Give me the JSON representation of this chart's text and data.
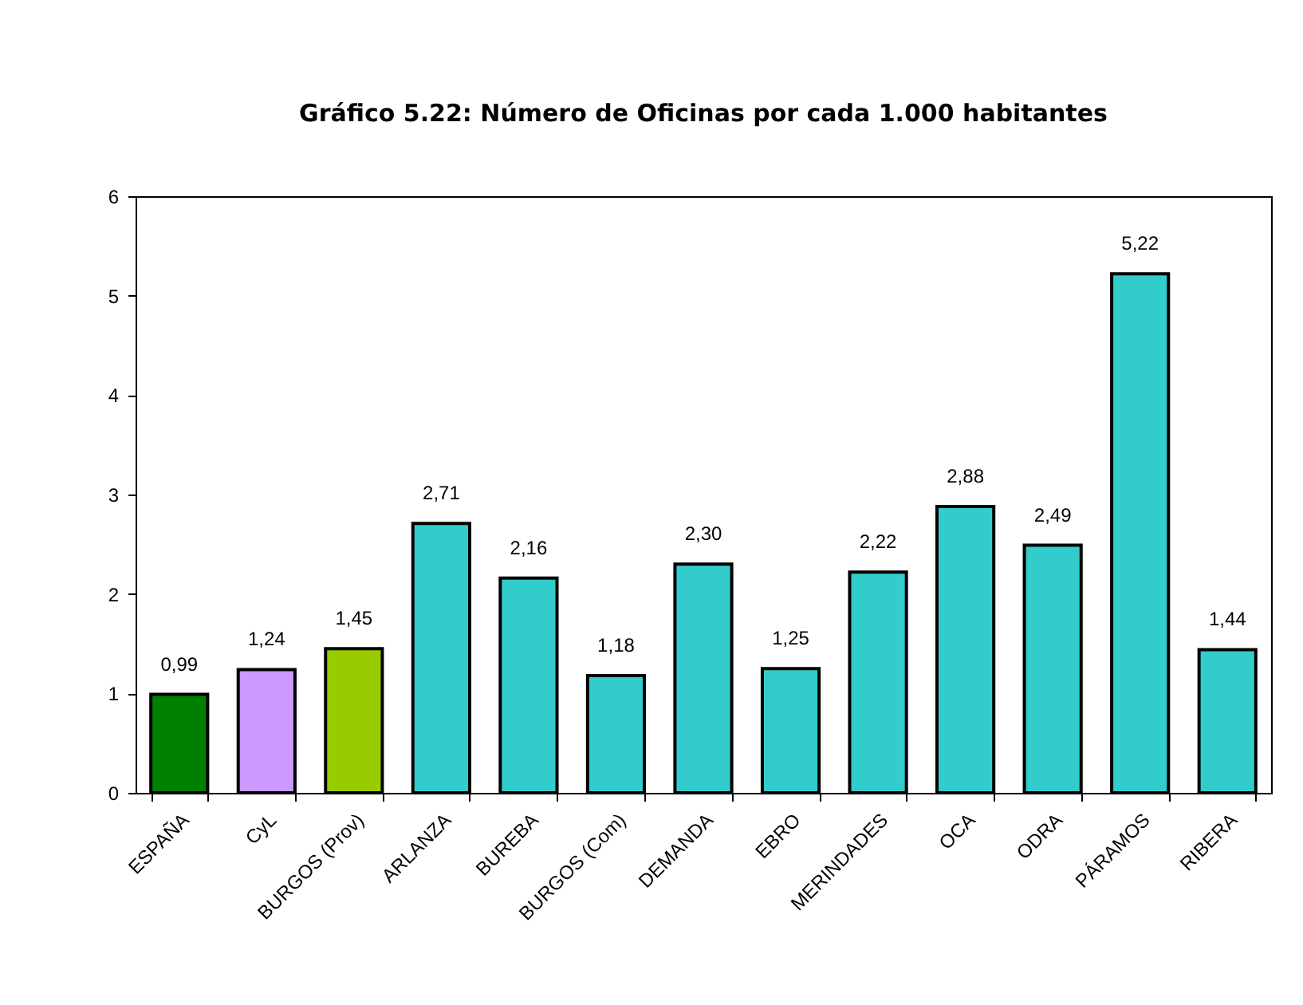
{
  "chart_data": {
    "type": "bar",
    "title": "Gráfico 5.22: Número de Oficinas por cada 1.000 habitantes",
    "categories": [
      "ESPAÑA",
      "CyL",
      "BURGOS (Prov)",
      "ARLANZA",
      "BUREBA",
      "BURGOS (Com)",
      "DEMANDA",
      "EBRO",
      "MERINDADES",
      "OCA",
      "ODRA",
      "PÁRAMOS",
      "RIBERA"
    ],
    "values": [
      0.99,
      1.24,
      1.45,
      2.71,
      2.16,
      1.18,
      2.3,
      1.25,
      2.22,
      2.88,
      2.49,
      5.22,
      1.44
    ],
    "value_labels": [
      "0,99",
      "1,24",
      "1,45",
      "2,71",
      "2,16",
      "1,18",
      "2,30",
      "1,25",
      "2,22",
      "2,88",
      "2,49",
      "5,22",
      "1,44"
    ],
    "colors": [
      "#008000",
      "#cc99ff",
      "#99cc00",
      "#33cccc",
      "#33cccc",
      "#33cccc",
      "#33cccc",
      "#33cccc",
      "#33cccc",
      "#33cccc",
      "#33cccc",
      "#33cccc",
      "#33cccc"
    ],
    "ylim": [
      0,
      6
    ],
    "yticks": [
      0,
      1,
      2,
      3,
      4,
      5,
      6
    ]
  }
}
